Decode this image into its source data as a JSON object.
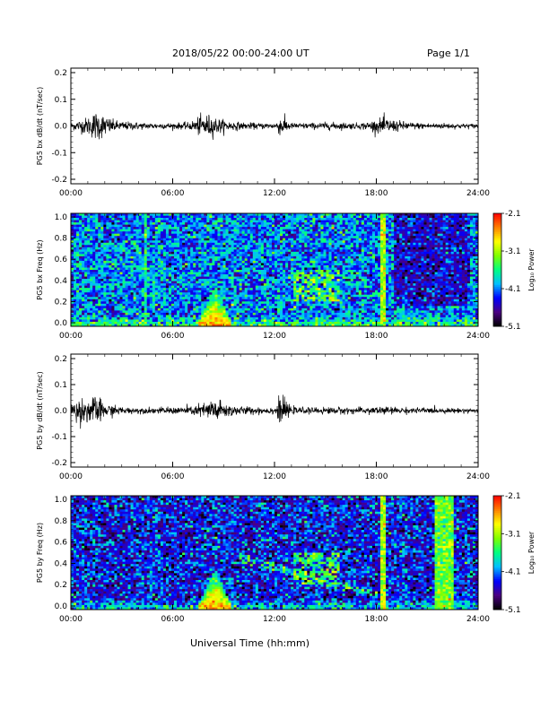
{
  "header": {
    "title": "2018/05/22  00:00-24:00 UT",
    "page": "Page 1/1"
  },
  "footer": {
    "xlabel": "Universal Time (hh:mm)"
  },
  "colorbar": {
    "label": "Log₁₀ Power",
    "ticks": [
      "-2.1",
      "-3.1",
      "-4.1",
      "-5.1"
    ],
    "range": [
      -5.1,
      -2.1
    ],
    "colormap": [
      "#000000",
      "#4b0082",
      "#0000ff",
      "#00bfff",
      "#00ff80",
      "#80ff00",
      "#ffff00",
      "#ff8000",
      "#ff0000"
    ]
  },
  "chart_data": [
    {
      "type": "line",
      "ylabel": "PG5 bx dB/dt (nT/sec)",
      "xlim": [
        0,
        24
      ],
      "ylim": [
        -0.2,
        0.2
      ],
      "xticks": [
        "00:00",
        "06:00",
        "12:00",
        "18:00",
        "24:00"
      ],
      "yticks": [
        "0.2",
        "0.1",
        "0.0",
        "-0.1",
        "-0.2"
      ],
      "envelope": {
        "hours": [
          0,
          0.5,
          1.0,
          1.5,
          2.0,
          2.5,
          3.0,
          4.0,
          5.0,
          6.0,
          7.0,
          7.5,
          8.0,
          8.5,
          9.0,
          10.0,
          11.0,
          12.0,
          12.4,
          13.0,
          14.0,
          15.0,
          16.0,
          17.0,
          18.0,
          18.5,
          19.0,
          20.0,
          21.0,
          22.0,
          23.0,
          24.0
        ],
        "amplitude": [
          0.012,
          0.02,
          0.03,
          0.05,
          0.035,
          0.02,
          0.015,
          0.012,
          0.01,
          0.01,
          0.012,
          0.03,
          0.04,
          0.03,
          0.02,
          0.012,
          0.01,
          0.01,
          0.035,
          0.01,
          0.01,
          0.012,
          0.012,
          0.01,
          0.02,
          0.03,
          0.02,
          0.012,
          0.01,
          0.01,
          0.008,
          0.008
        ]
      }
    },
    {
      "type": "heatmap",
      "ylabel": "PG5 bx Freq (Hz)",
      "xlim": [
        0,
        24
      ],
      "ylim": [
        0.0,
        1.0
      ],
      "xticks": [
        "00:00",
        "06:00",
        "12:00",
        "18:00",
        "24:00"
      ],
      "yticks": [
        "1.0",
        "0.8",
        "0.6",
        "0.4",
        "0.2",
        "0.0"
      ],
      "colorbar_range": [
        -5.1,
        -2.1
      ],
      "background_level": -4.1,
      "features": [
        {
          "kind": "band",
          "hours": [
            18.3,
            18.6
          ],
          "level": -3.1
        },
        {
          "kind": "band",
          "hours": [
            4.3,
            4.5
          ],
          "level": -3.6
        },
        {
          "kind": "low_freq",
          "hours": [
            7.5,
            9.5
          ],
          "level": -2.6
        },
        {
          "kind": "blob",
          "hours": [
            13.2,
            15.8
          ],
          "freq": [
            0.2,
            0.5
          ],
          "level": -3.3
        },
        {
          "kind": "quiet",
          "hours": [
            19.0,
            23.5
          ],
          "level": -4.5
        }
      ]
    },
    {
      "type": "line",
      "ylabel": "PG5 by dB/dt (nT/sec)",
      "xlim": [
        0,
        24
      ],
      "ylim": [
        -0.2,
        0.2
      ],
      "xticks": [
        "00:00",
        "06:00",
        "12:00",
        "18:00",
        "24:00"
      ],
      "yticks": [
        "0.2",
        "0.1",
        "0.0",
        "-0.1",
        "-0.2"
      ],
      "envelope": {
        "hours": [
          0,
          0.5,
          1.0,
          1.5,
          2.0,
          3.0,
          4.0,
          5.0,
          6.0,
          7.0,
          7.5,
          8.0,
          8.5,
          9.0,
          10.0,
          11.0,
          12.0,
          12.4,
          13.0,
          14.0,
          15.0,
          16.0,
          17.0,
          18.0,
          19.0,
          20.0,
          21.0,
          22.0,
          23.0,
          24.0
        ],
        "amplitude": [
          0.03,
          0.04,
          0.045,
          0.05,
          0.025,
          0.012,
          0.01,
          0.01,
          0.012,
          0.015,
          0.02,
          0.03,
          0.045,
          0.025,
          0.015,
          0.012,
          0.012,
          0.05,
          0.012,
          0.01,
          0.012,
          0.012,
          0.01,
          0.015,
          0.012,
          0.01,
          0.01,
          0.008,
          0.008,
          0.008
        ]
      }
    },
    {
      "type": "heatmap",
      "ylabel": "PG5 by Freq (Hz)",
      "xlim": [
        0,
        24
      ],
      "ylim": [
        0.0,
        1.0
      ],
      "xticks": [
        "00:00",
        "06:00",
        "12:00",
        "18:00",
        "24:00"
      ],
      "yticks": [
        "1.0",
        "0.8",
        "0.6",
        "0.4",
        "0.2",
        "0.0"
      ],
      "colorbar_range": [
        -5.1,
        -2.1
      ],
      "background_level": -4.4,
      "features": [
        {
          "kind": "band",
          "hours": [
            18.3,
            18.6
          ],
          "level": -3.1
        },
        {
          "kind": "band",
          "hours": [
            21.5,
            22.6
          ],
          "level": -3.3
        },
        {
          "kind": "low_freq",
          "hours": [
            7.5,
            9.5
          ],
          "level": -2.6
        },
        {
          "kind": "blob",
          "hours": [
            13.2,
            15.8
          ],
          "freq": [
            0.2,
            0.5
          ],
          "level": -3.4
        },
        {
          "kind": "arc",
          "hours": [
            10.0,
            18.0
          ],
          "level": -3.6
        }
      ]
    }
  ]
}
